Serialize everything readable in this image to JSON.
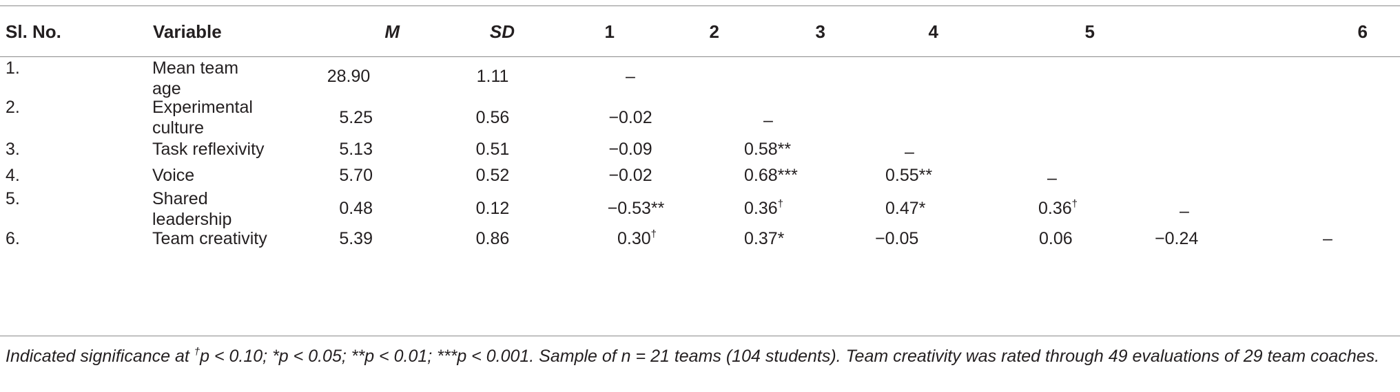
{
  "table": {
    "headers": [
      "Sl. No.",
      "Variable",
      "M",
      "SD",
      "1",
      "2",
      "3",
      "4",
      "5",
      "6"
    ],
    "rows": [
      {
        "no": "1.",
        "variable_line1": "Mean team",
        "variable_line2": "age",
        "m": "28.90",
        "sd": "1.11",
        "c1": "–",
        "c2": "",
        "c3": "",
        "c4": "",
        "c5": "",
        "c6": ""
      },
      {
        "no": "2.",
        "variable_line1": "Experimental",
        "variable_line2": "culture",
        "m": "5.25",
        "sd": "0.56",
        "c1": "−0.02",
        "c2": "–",
        "c3": "",
        "c4": "",
        "c5": "",
        "c6": ""
      },
      {
        "no": "3.",
        "variable_line1": "Task reflexivity",
        "variable_line2": "",
        "m": "5.13",
        "sd": "0.51",
        "c1": "−0.09",
        "c2": "0.58**",
        "c3": "–",
        "c4": "",
        "c5": "",
        "c6": ""
      },
      {
        "no": "4.",
        "variable_line1": "Voice",
        "variable_line2": "",
        "m": "5.70",
        "sd": "0.52",
        "c1": "−0.02",
        "c2": "0.68***",
        "c3": "0.55**",
        "c4": "–",
        "c5": "",
        "c6": ""
      },
      {
        "no": "5.",
        "variable_line1": "Shared",
        "variable_line2": "leadership",
        "m": "0.48",
        "sd": "0.12",
        "c1": "−0.53**",
        "c2_val": "0.36",
        "c2_sup": "†",
        "c3": "0.47*",
        "c4_val": "0.36",
        "c4_sup": "†",
        "c5": "–",
        "c6": ""
      },
      {
        "no": "6.",
        "variable_line1": "Team creativity",
        "variable_line2": "",
        "m": "5.39",
        "sd": "0.86",
        "c1_val": "0.30",
        "c1_sup": "†",
        "c2": "0.37*",
        "c3": "−0.05",
        "c4": "0.06",
        "c5": "−0.24",
        "c6": "–"
      }
    ]
  },
  "note": {
    "part1": "Indicated significance at ",
    "dagger": "†",
    "part2": "p < 0.10; *p < 0.05; **p < 0.01; ***p < 0.001. Sample of n = 21 teams (104 students). Team creativity was rated through 49 evaluations of 29 team coaches."
  }
}
